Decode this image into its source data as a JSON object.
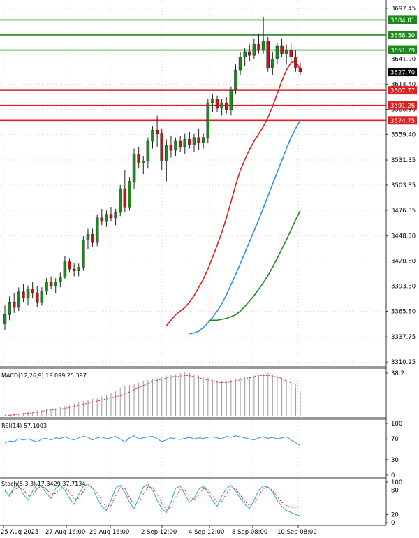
{
  "chart_data": {
    "type": "candlestick",
    "title": "",
    "price_axis": {
      "min": 3305,
      "max": 3705,
      "ticks": [
        3697.45,
        3669.5,
        3641.9,
        3614.4,
        3586.9,
        3559.4,
        3531.35,
        3503.85,
        3476.35,
        3448.3,
        3420.8,
        3393.3,
        3365.8,
        3337.75,
        3310.25
      ]
    },
    "time_labels": [
      "25 Aug 2025",
      "27 Aug 16:00",
      "29 Aug 16:00",
      "2 Sep 12:00",
      "4 Sep 12:00",
      "8 Sep 08:00",
      "10 Sep 08:00"
    ],
    "levels": [
      {
        "value": 3684.81,
        "label": "3684.81",
        "kind": "resistance",
        "color": "#1a8a1a"
      },
      {
        "value": 3668.3,
        "label": "3668.30",
        "kind": "resistance",
        "color": "#1a8a1a"
      },
      {
        "value": 3651.79,
        "label": "3651.79",
        "kind": "resistance",
        "color": "#1a8a1a"
      },
      {
        "value": 3607.77,
        "label": "3607.77",
        "kind": "support",
        "color": "#e02020"
      },
      {
        "value": 3591.26,
        "label": "3591.26",
        "kind": "support",
        "color": "#e02020"
      },
      {
        "value": 3574.75,
        "label": "3574.75",
        "kind": "support",
        "color": "#e02020"
      }
    ],
    "current_price": {
      "value": 3627.7,
      "label": "3627.70"
    },
    "candles": [
      [
        3352,
        3372,
        3345,
        3362
      ],
      [
        3362,
        3382,
        3356,
        3376
      ],
      [
        3376,
        3386,
        3364,
        3370
      ],
      [
        3370,
        3392,
        3366,
        3387
      ],
      [
        3387,
        3396,
        3376,
        3381
      ],
      [
        3381,
        3394,
        3372,
        3390
      ],
      [
        3390,
        3398,
        3380,
        3386
      ],
      [
        3386,
        3393,
        3370,
        3376
      ],
      [
        3376,
        3392,
        3372,
        3388
      ],
      [
        3388,
        3402,
        3384,
        3398
      ],
      [
        3398,
        3404,
        3390,
        3394
      ],
      [
        3394,
        3402,
        3386,
        3398
      ],
      [
        3398,
        3408,
        3392,
        3403
      ],
      [
        3403,
        3426,
        3401,
        3420
      ],
      [
        3420,
        3424,
        3408,
        3412
      ],
      [
        3412,
        3418,
        3404,
        3410
      ],
      [
        3410,
        3418,
        3404,
        3414
      ],
      [
        3414,
        3448,
        3410,
        3444
      ],
      [
        3444,
        3456,
        3434,
        3450
      ],
      [
        3450,
        3456,
        3436,
        3441
      ],
      [
        3441,
        3472,
        3437,
        3468
      ],
      [
        3468,
        3478,
        3460,
        3464
      ],
      [
        3464,
        3476,
        3458,
        3472
      ],
      [
        3472,
        3480,
        3464,
        3468
      ],
      [
        3468,
        3478,
        3460,
        3474
      ],
      [
        3474,
        3504,
        3470,
        3500
      ],
      [
        3500,
        3520,
        3474,
        3480
      ],
      [
        3480,
        3512,
        3476,
        3508
      ],
      [
        3508,
        3544,
        3500,
        3538
      ],
      [
        3538,
        3546,
        3522,
        3528
      ],
      [
        3528,
        3536,
        3516,
        3530
      ],
      [
        3530,
        3556,
        3522,
        3552
      ],
      [
        3552,
        3568,
        3544,
        3564
      ],
      [
        3564,
        3580,
        3546,
        3560
      ],
      [
        3560,
        3566,
        3520,
        3530
      ],
      [
        3530,
        3554,
        3508,
        3548
      ],
      [
        3548,
        3558,
        3534,
        3542
      ],
      [
        3542,
        3556,
        3536,
        3552
      ],
      [
        3552,
        3558,
        3540,
        3546
      ],
      [
        3546,
        3560,
        3538,
        3554
      ],
      [
        3554,
        3562,
        3544,
        3548
      ],
      [
        3548,
        3560,
        3540,
        3556
      ],
      [
        3556,
        3566,
        3542,
        3550
      ],
      [
        3550,
        3560,
        3544,
        3556
      ],
      [
        3556,
        3598,
        3550,
        3594
      ],
      [
        3594,
        3604,
        3584,
        3598
      ],
      [
        3598,
        3602,
        3584,
        3588
      ],
      [
        3588,
        3598,
        3580,
        3594
      ],
      [
        3594,
        3600,
        3582,
        3586
      ],
      [
        3586,
        3612,
        3580,
        3608
      ],
      [
        3608,
        3636,
        3604,
        3630
      ],
      [
        3630,
        3650,
        3624,
        3644
      ],
      [
        3644,
        3654,
        3634,
        3650
      ],
      [
        3650,
        3658,
        3640,
        3646
      ],
      [
        3646,
        3664,
        3642,
        3658
      ],
      [
        3658,
        3670,
        3648,
        3652
      ],
      [
        3652,
        3688,
        3648,
        3662
      ],
      [
        3662,
        3666,
        3628,
        3632
      ],
      [
        3632,
        3650,
        3624,
        3642
      ],
      [
        3642,
        3660,
        3636,
        3656
      ],
      [
        3656,
        3664,
        3644,
        3648
      ],
      [
        3648,
        3658,
        3636,
        3652
      ],
      [
        3652,
        3660,
        3640,
        3644
      ],
      [
        3644,
        3652,
        3628,
        3632
      ],
      [
        3632,
        3638,
        3624,
        3628
      ]
    ],
    "ma_series": [
      {
        "color": "#e02020",
        "values": [
          3350,
          3356,
          3362,
          3366,
          3370,
          3376,
          3383,
          3392,
          3401,
          3412,
          3425,
          3438,
          3452,
          3468,
          3486,
          3504,
          3520,
          3532,
          3543,
          3552,
          3560,
          3568,
          3578,
          3590,
          3604,
          3618,
          3630,
          3638,
          3640,
          3630
        ]
      },
      {
        "color": "#2a90e8",
        "values": [
          3341,
          3342,
          3344,
          3348,
          3353,
          3359,
          3366,
          3374,
          3384,
          3395,
          3406,
          3418,
          3430,
          3442,
          3454,
          3466,
          3479,
          3492,
          3505,
          3518,
          3531,
          3544,
          3556,
          3566,
          3575
        ]
      },
      {
        "color": "#1a8a1a",
        "values": [
          3355,
          3356,
          3356,
          3357,
          3358,
          3360,
          3362,
          3366,
          3371,
          3377,
          3383,
          3390,
          3397,
          3405,
          3414,
          3424,
          3434,
          3444,
          3455,
          3466,
          3476
        ]
      }
    ],
    "macd": {
      "label": "MACD(12,26,9) 19.099 25.397",
      "max_label": "38.2",
      "max": 38.2,
      "histogram": [
        1,
        1.5,
        2,
        2.5,
        3,
        3.5,
        4,
        5,
        5.5,
        6,
        6.5,
        7,
        8,
        9,
        10,
        11,
        12,
        13,
        14,
        15,
        16,
        17,
        18,
        20,
        22,
        24,
        26,
        27,
        28,
        29,
        30,
        31,
        32,
        33,
        34,
        35,
        36,
        36,
        37,
        38,
        37,
        36,
        35,
        34,
        33,
        31,
        30,
        30,
        30,
        31,
        32,
        33,
        34,
        34,
        35,
        35,
        36,
        37,
        36,
        35,
        33,
        31,
        28,
        25,
        22
      ],
      "signal": [
        1,
        1,
        1.5,
        2,
        2.5,
        3,
        3.5,
        4,
        5,
        5.5,
        6,
        6.5,
        7,
        8,
        9,
        10,
        11,
        12,
        13,
        14,
        15,
        16,
        17,
        18,
        20,
        22,
        24,
        26,
        28,
        30,
        31,
        32,
        33,
        34,
        34,
        35,
        35,
        34,
        33,
        32,
        31,
        30,
        29,
        29,
        29,
        30,
        31,
        32,
        33,
        34,
        35,
        35,
        35,
        34,
        33,
        31,
        29,
        27,
        25.4
      ]
    },
    "rsi": {
      "label": "RSI(14) 57.1003",
      "ticks": [
        100,
        70,
        30,
        0
      ],
      "values": [
        62,
        66,
        65,
        70,
        68,
        70,
        67,
        64,
        70,
        71,
        68,
        72,
        71,
        74,
        70,
        68,
        72,
        75,
        73,
        68,
        72,
        74,
        70,
        72,
        75,
        70,
        64,
        72,
        76,
        70,
        72,
        74,
        75,
        70,
        65,
        68,
        72,
        70,
        69,
        71,
        73,
        70,
        72,
        71,
        73,
        74,
        72,
        70,
        75,
        73,
        76,
        74,
        72,
        70,
        68,
        72,
        74,
        71,
        73,
        70,
        72,
        74,
        68,
        63,
        57
      ]
    },
    "stoch": {
      "label": "Stoch(5,3,3) 17.3429 37.7134",
      "ticks": [
        100,
        80,
        20,
        0
      ],
      "k": [
        80,
        65,
        88,
        92,
        70,
        55,
        78,
        95,
        88,
        72,
        60,
        85,
        92,
        80,
        60,
        45,
        70,
        90,
        95,
        85,
        60,
        40,
        30,
        55,
        85,
        92,
        75,
        50,
        35,
        60,
        88,
        94,
        80,
        55,
        35,
        25,
        50,
        85,
        90,
        70,
        50,
        60,
        82,
        90,
        75,
        55,
        40,
        65,
        85,
        92,
        78,
        60,
        45,
        35,
        55,
        80,
        90,
        88,
        75,
        55,
        40,
        30,
        25,
        20,
        17
      ],
      "d": [
        78,
        70,
        80,
        88,
        82,
        66,
        68,
        84,
        90,
        82,
        70,
        72,
        84,
        86,
        76,
        58,
        60,
        78,
        90,
        88,
        74,
        54,
        38,
        42,
        66,
        86,
        84,
        62,
        44,
        46,
        70,
        88,
        86,
        70,
        48,
        32,
        38,
        62,
        82,
        80,
        64,
        56,
        68,
        84,
        82,
        66,
        50,
        52,
        72,
        86,
        84,
        68,
        52,
        42,
        46,
        66,
        84,
        88,
        80,
        64,
        50,
        42,
        38,
        38,
        37.7
      ]
    }
  }
}
